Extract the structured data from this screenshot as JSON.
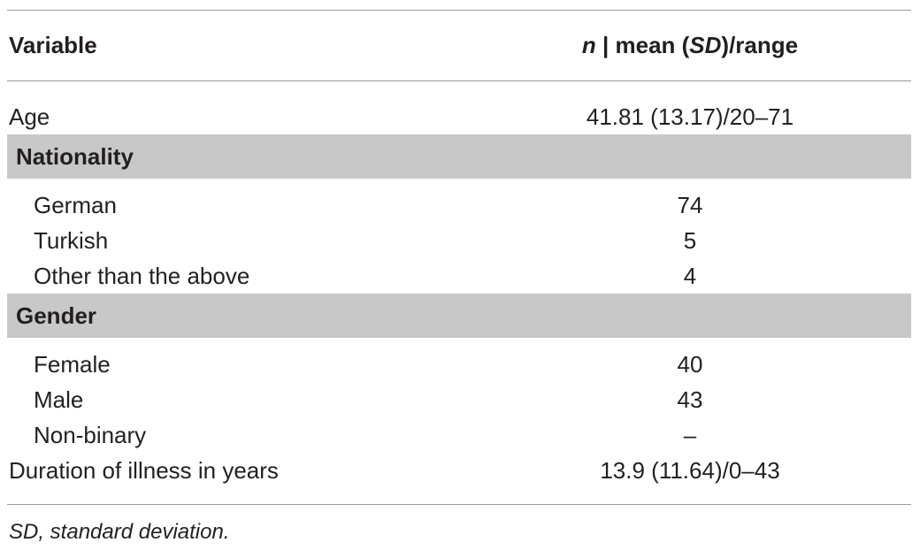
{
  "table": {
    "header": {
      "label": "Variable",
      "value_parts": [
        "n",
        " | mean (",
        "SD",
        ")/range"
      ]
    },
    "rows": [
      {
        "label": "Age",
        "value": "41.81 (13.17)/20–71"
      },
      {
        "section": "Nationality",
        "items": [
          {
            "label": "German",
            "value": "74"
          },
          {
            "label": "Turkish",
            "value": "5"
          },
          {
            "label": "Other than the above",
            "value": "4"
          }
        ]
      },
      {
        "section": "Gender",
        "items": [
          {
            "label": "Female",
            "value": "40"
          },
          {
            "label": "Male",
            "value": "43"
          },
          {
            "label": "Non-binary",
            "value": "–"
          }
        ]
      },
      {
        "label": "Duration of illness in years",
        "value": "13.9 (11.64)/0–43"
      }
    ],
    "footnote": "SD, standard deviation."
  }
}
